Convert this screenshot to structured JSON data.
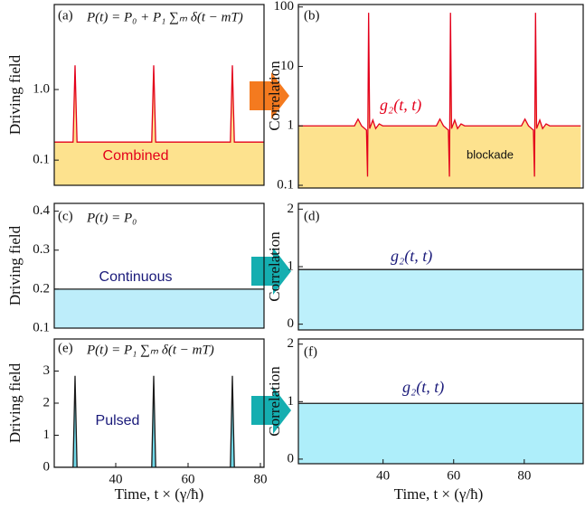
{
  "chart_data": [
    {
      "type": "line",
      "panel_label": "(a)",
      "formula": "P(t) = P₀ + P₁ ∑ₘ δ(t − mT)",
      "annotation": "Combined",
      "y_label": "Driving field",
      "x": [
        23,
        28.2,
        28.75,
        29.3,
        49.95,
        50.5,
        51.05,
        71.7,
        72.25,
        72.8,
        81
      ],
      "values": [
        0.18,
        0.18,
        2.2,
        0.18,
        0.18,
        2.2,
        0.18,
        0.18,
        2.2,
        0.18,
        0.18
      ],
      "color": "#e3001b",
      "fill": "#fde28e",
      "log_y": true,
      "xlim": [
        23,
        81
      ],
      "ylim": [
        0.044,
        16
      ],
      "yticks": [
        0.1,
        {
          "value": 1,
          "label": "1.0"
        }
      ]
    },
    {
      "type": "line",
      "panel_label": "(b)",
      "curve_label": "g₂(t, t)",
      "annotation": "blockade",
      "y_label": "Correlation",
      "x": [
        16,
        31.9,
        32.9,
        33.9,
        35.3,
        35.6,
        35.9,
        36.2,
        37.1,
        37.9,
        38.9,
        39.9,
        55.1,
        56.1,
        57.1,
        58.5,
        58.8,
        59.1,
        59.4,
        60.3,
        61.1,
        62.1,
        63.1,
        79.2,
        80.2,
        81.2,
        82.6,
        82.9,
        83.2,
        83.5,
        84.4,
        85.2,
        86.2,
        87.2,
        96
      ],
      "values": [
        1,
        1,
        1.3,
        1.0,
        0.85,
        0.14,
        80,
        0.9,
        1.25,
        0.9,
        1.08,
        1,
        1,
        1.3,
        1.0,
        0.85,
        0.14,
        80,
        0.9,
        1.25,
        0.9,
        1.08,
        1,
        1,
        1.3,
        1.0,
        0.85,
        0.14,
        80,
        0.9,
        1.25,
        0.9,
        1.08,
        1,
        1
      ],
      "color": "#e3001b",
      "fill": "#fde28e",
      "log_y": true,
      "xlim": [
        16,
        96.7
      ],
      "ylim": [
        0.09,
        110
      ],
      "yticks": [
        0.1,
        1,
        10,
        100
      ]
    },
    {
      "type": "line",
      "panel_label": "(c)",
      "formula": "P(t) = P₀",
      "annotation": "Continuous",
      "y_label": "Driving field",
      "x": [
        23,
        81
      ],
      "values": [
        0.2,
        0.2
      ],
      "color": "#1a1a1a",
      "fill": "#bdedfa",
      "xlim": [
        23,
        81
      ],
      "ylim": [
        0.1,
        0.42
      ],
      "yticks": [
        0.1,
        0.2,
        0.3,
        0.4
      ]
    },
    {
      "type": "line",
      "panel_label": "(d)",
      "curve_label": "g₂(t, t)",
      "y_label": "Correlation",
      "x": [
        16,
        96.7
      ],
      "values": [
        0.95,
        0.95
      ],
      "color": "#1a1a1a",
      "fill": "#bdf0fb",
      "xlim": [
        16,
        96.7
      ],
      "ylim": [
        -0.1,
        2.1
      ],
      "yticks": [
        0,
        1,
        2
      ]
    },
    {
      "type": "line",
      "panel_label": "(e)",
      "formula": "P(t) = P₁ ∑ₘ δ(t − mT)",
      "annotation": "Pulsed",
      "y_label": "Driving field",
      "x_label": "Time, t × (γ/ħ)",
      "x": [
        23,
        28.2,
        28.75,
        29.3,
        49.95,
        50.5,
        51.05,
        71.7,
        72.25,
        72.8,
        81
      ],
      "values": [
        0,
        0,
        2.85,
        0,
        0,
        2.85,
        0,
        0,
        2.85,
        0,
        0
      ],
      "color": "#1a1a1a",
      "fill": "#6fd8e8",
      "xlim": [
        23,
        81
      ],
      "ylim": [
        0,
        4
      ],
      "xticks": [
        40,
        60,
        80
      ],
      "yticks": [
        0,
        1,
        2,
        3
      ]
    },
    {
      "type": "line",
      "panel_label": "(f)",
      "curve_label": "g₂(t, t)",
      "y_label": "Correlation",
      "x_label": "Time, t × (γ/ħ)",
      "x": [
        16,
        96.7
      ],
      "values": [
        0.97,
        0.97
      ],
      "color": "#1a1a1a",
      "fill": "#aeeefa",
      "xlim": [
        16,
        96.7
      ],
      "ylim": [
        -0.08,
        2.09
      ],
      "xticks": [
        40,
        60,
        80
      ],
      "yticks": [
        0,
        1,
        2
      ]
    }
  ]
}
